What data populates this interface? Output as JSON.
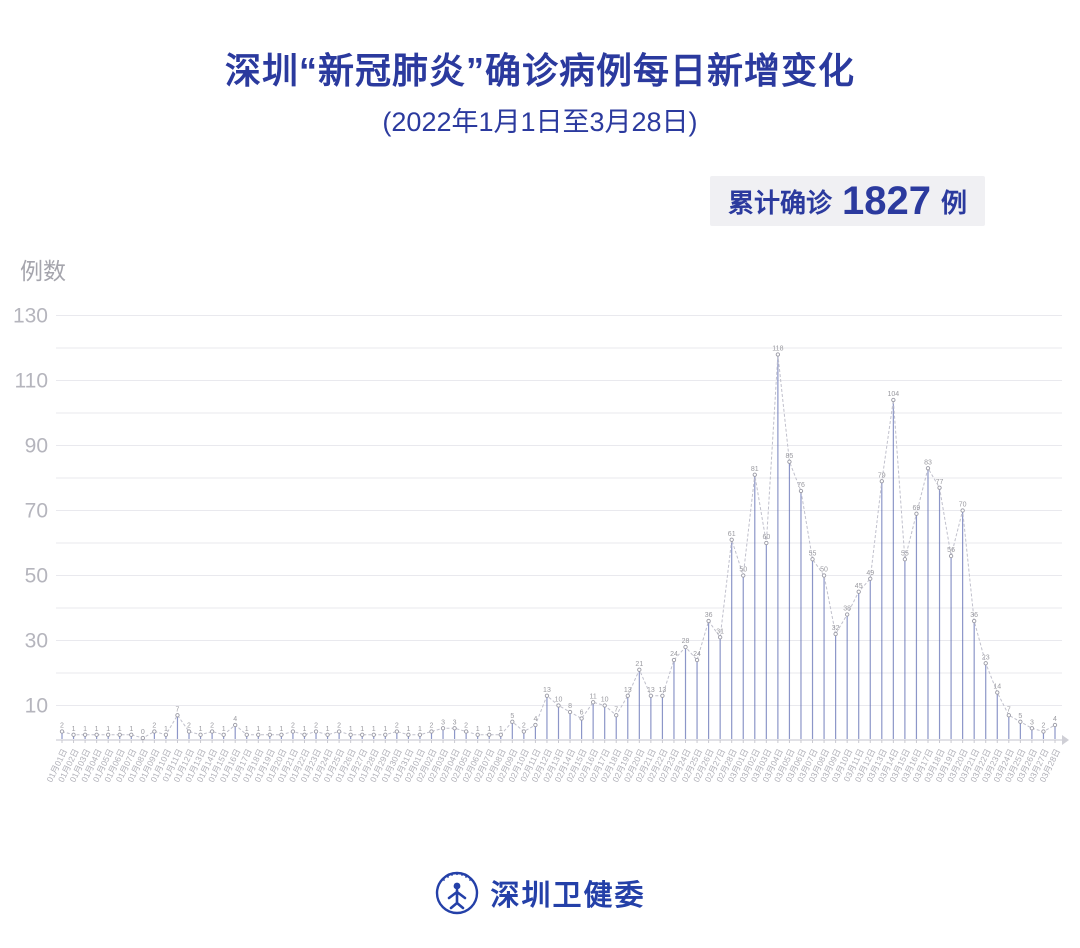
{
  "header": {
    "title": "深圳“新冠肺炎”确诊病例每日新增变化",
    "subtitle": "(2022年1月1日至3月28日)"
  },
  "badge": {
    "label": "累计确诊",
    "value": "1827",
    "unit": "例"
  },
  "footer": {
    "org": "深圳卫健委",
    "logo": "shenzhen-health-commission-emblem"
  },
  "colors": {
    "title_blue": "#2b3a9e",
    "badge_bg": "#f0f0f3",
    "stem_blue": "#5b6ab0",
    "line_gray": "#c0c0cc",
    "grid_gray": "#e9e9ee",
    "tick_label_gray": "#b5b5bd",
    "value_label_gray": "#9a9aa0",
    "footer_blue": "#2440a8"
  },
  "chart_data": {
    "type": "line",
    "title": "深圳“新冠肺炎”确诊病例每日新增变化",
    "subtitle": "(2022年1月1日至3月28日)",
    "cumulative_total": 1827,
    "xlabel": "",
    "ylabel": "例数",
    "ylim": [
      0,
      135
    ],
    "yticks_labeled": [
      10,
      30,
      50,
      70,
      90,
      110,
      130
    ],
    "grid_step": 10,
    "grid": true,
    "legend_position": "none",
    "x": [
      "01月01日",
      "01月02日",
      "01月03日",
      "01月04日",
      "01月05日",
      "01月06日",
      "01月07日",
      "01月08日",
      "01月09日",
      "01月10日",
      "01月11日",
      "01月12日",
      "01月13日",
      "01月14日",
      "01月15日",
      "01月16日",
      "01月17日",
      "01月18日",
      "01月19日",
      "01月20日",
      "01月21日",
      "01月22日",
      "01月23日",
      "01月24日",
      "01月25日",
      "01月26日",
      "01月27日",
      "01月28日",
      "01月29日",
      "01月30日",
      "01月31日",
      "02月01日",
      "02月02日",
      "02月03日",
      "02月04日",
      "02月05日",
      "02月06日",
      "02月07日",
      "02月08日",
      "02月09日",
      "02月10日",
      "02月11日",
      "02月12日",
      "02月13日",
      "02月14日",
      "02月15日",
      "02月16日",
      "02月17日",
      "02月18日",
      "02月19日",
      "02月20日",
      "02月21日",
      "02月22日",
      "02月23日",
      "02月24日",
      "02月25日",
      "02月26日",
      "02月27日",
      "02月28日",
      "03月01日",
      "03月02日",
      "03月03日",
      "03月04日",
      "03月05日",
      "03月06日",
      "03月07日",
      "03月08日",
      "03月09日",
      "03月10日",
      "03月11日",
      "03月12日",
      "03月13日",
      "03月14日",
      "03月15日",
      "03月16日",
      "03月17日",
      "03月18日",
      "03月19日",
      "03月20日",
      "03月21日",
      "03月22日",
      "03月23日",
      "03月24日",
      "03月25日",
      "03月26日",
      "03月27日",
      "03月28日"
    ],
    "values": [
      2,
      1,
      1,
      1,
      1,
      1,
      1,
      0,
      2,
      1,
      7,
      2,
      1,
      2,
      1,
      4,
      1,
      1,
      1,
      1,
      2,
      1,
      2,
      1,
      2,
      1,
      1,
      1,
      1,
      2,
      1,
      1,
      2,
      3,
      3,
      2,
      1,
      1,
      1,
      5,
      2,
      4,
      13,
      10,
      8,
      6,
      11,
      10,
      7,
      13,
      21,
      13,
      13,
      24,
      28,
      24,
      36,
      31,
      61,
      50,
      81,
      60,
      118,
      85,
      76,
      55,
      50,
      32,
      38,
      45,
      49,
      79,
      104,
      55,
      69,
      83,
      77,
      56,
      70,
      36,
      23,
      14,
      7,
      5,
      3,
      2,
      4
    ]
  }
}
